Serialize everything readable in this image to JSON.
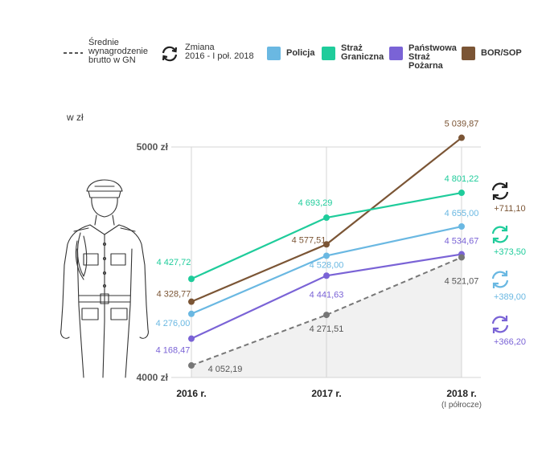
{
  "legend": {
    "avg_label": [
      "Średnie",
      "wynagrodzenie",
      "brutto w GN"
    ],
    "change_label": [
      "Zmiana",
      "2016 - I poł. 2018"
    ],
    "series": [
      {
        "name": "Policja",
        "lines": [
          "Policja"
        ],
        "color": "#6ab8e2"
      },
      {
        "name": "Straż Graniczna",
        "lines": [
          "Straż",
          "Graniczna"
        ],
        "color": "#1fcc9b"
      },
      {
        "name": "Państwowa Straż Pożarna",
        "lines": [
          "Państwowa",
          "Straż",
          "Pożarna"
        ],
        "color": "#7a63d6"
      },
      {
        "name": "BOR/SOP",
        "lines": [
          "BOR/SOP"
        ],
        "color": "#7b5535"
      }
    ]
  },
  "chart_data": {
    "type": "line",
    "unit_label": "w zł",
    "y_ticks": [
      {
        "value": 5000,
        "label": "5000 zł"
      },
      {
        "value": 4000,
        "label": "4000 zł"
      }
    ],
    "ylim": [
      4000,
      5000
    ],
    "x": [
      {
        "label": "2016 r.",
        "sub": ""
      },
      {
        "label": "2017 r.",
        "sub": ""
      },
      {
        "label": "2018 r.",
        "sub": "(I półrocze)"
      }
    ],
    "series": [
      {
        "name": "BOR/SOP",
        "color": "#7b5535",
        "dashed": false,
        "values": [
          4328.77,
          4577.51,
          5039.87
        ],
        "labels": [
          "4 328,77",
          "4 577,51",
          "5 039,87"
        ]
      },
      {
        "name": "Straż Graniczna",
        "color": "#1fcc9b",
        "dashed": false,
        "values": [
          4427.72,
          4693.29,
          4801.22
        ],
        "labels": [
          "4 427,72",
          "4 693,29",
          "4 801,22"
        ]
      },
      {
        "name": "Policja",
        "color": "#6ab8e2",
        "dashed": false,
        "values": [
          4276.0,
          4528.0,
          4655.0
        ],
        "labels": [
          "4 276,00",
          "4 528,00",
          "4 655,00"
        ]
      },
      {
        "name": "Państwowa Straż Pożarna",
        "color": "#7a63d6",
        "dashed": false,
        "values": [
          4168.47,
          4441.63,
          4534.67
        ],
        "labels": [
          "4 168,47",
          "4 441,63",
          "4 534,67"
        ]
      },
      {
        "name": "Średnie wynagrodzenie brutto w GN",
        "color": "#777777",
        "dashed": true,
        "values": [
          4052.19,
          4271.51,
          4521.07
        ],
        "labels": [
          "4 052,19",
          "4 271,51",
          "4 521,07"
        ]
      }
    ],
    "changes": [
      {
        "series": "BOR/SOP",
        "label": "+711,10",
        "color": "#7b5535",
        "icon_color": "#222222"
      },
      {
        "series": "Straż Graniczna",
        "label": "+373,50",
        "color": "#1fcc9b",
        "icon_color": "#1fcc9b"
      },
      {
        "series": "Policja",
        "label": "+389,00",
        "color": "#6ab8e2",
        "icon_color": "#6ab8e2"
      },
      {
        "series": "Państwowa Straż Pożarna",
        "label": "+366,20",
        "color": "#7a63d6",
        "icon_color": "#7a63d6"
      }
    ]
  }
}
